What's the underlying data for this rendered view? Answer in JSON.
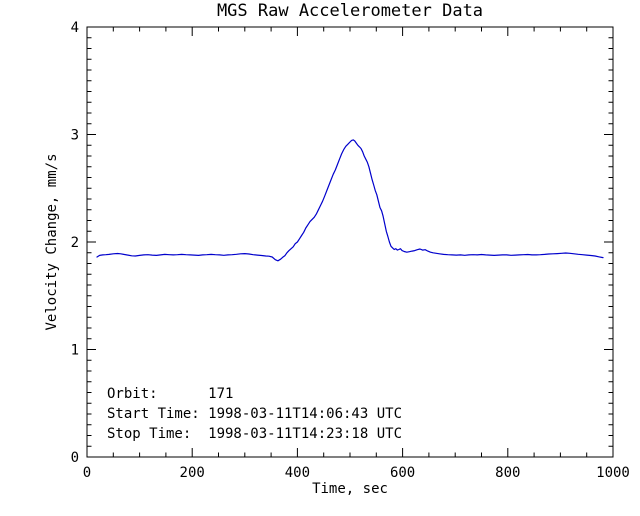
{
  "figure": {
    "background": "#ffffff"
  },
  "chart_data": {
    "type": "line",
    "title": "MGS Raw Accelerometer Data",
    "xlabel": "Time, sec",
    "ylabel": "Velocity Change, mm/s",
    "xlim": [
      0,
      1000
    ],
    "ylim": [
      0,
      4
    ],
    "x_major_ticks": [
      0,
      200,
      400,
      600,
      800,
      1000
    ],
    "x_minor_step": 50,
    "y_major_ticks": [
      0,
      1,
      2,
      3,
      4
    ],
    "y_minor_step": 0.1,
    "grid": false,
    "legend": "none",
    "axis_color": "#000000",
    "line_color": "#0000cc",
    "orbit": "171",
    "start_time": "1998-03-11T14:06:43 UTC",
    "stop_time": "1998-03-11T14:23:18 UTC",
    "annotations": [
      {
        "text": "Orbit:      171"
      },
      {
        "text": "Start Time: 1998-03-11T14:06:43 UTC"
      },
      {
        "text": "Stop Time:  1998-03-11T14:23:18 UTC"
      }
    ],
    "series": [
      {
        "name": "velocity-change",
        "color": "#0000cc",
        "points": [
          [
            19,
            1.86
          ],
          [
            24,
            1.875
          ],
          [
            30,
            1.88
          ],
          [
            36,
            1.882
          ],
          [
            42,
            1.885
          ],
          [
            50,
            1.89
          ],
          [
            58,
            1.893
          ],
          [
            64,
            1.89
          ],
          [
            70,
            1.885
          ],
          [
            78,
            1.878
          ],
          [
            85,
            1.872
          ],
          [
            92,
            1.87
          ],
          [
            100,
            1.875
          ],
          [
            108,
            1.88
          ],
          [
            116,
            1.882
          ],
          [
            124,
            1.878
          ],
          [
            132,
            1.875
          ],
          [
            140,
            1.88
          ],
          [
            148,
            1.885
          ],
          [
            156,
            1.882
          ],
          [
            164,
            1.88
          ],
          [
            172,
            1.882
          ],
          [
            180,
            1.885
          ],
          [
            188,
            1.882
          ],
          [
            196,
            1.88
          ],
          [
            204,
            1.878
          ],
          [
            212,
            1.875
          ],
          [
            220,
            1.88
          ],
          [
            228,
            1.882
          ],
          [
            236,
            1.885
          ],
          [
            244,
            1.882
          ],
          [
            252,
            1.88
          ],
          [
            260,
            1.876
          ],
          [
            268,
            1.88
          ],
          [
            276,
            1.882
          ],
          [
            284,
            1.886
          ],
          [
            292,
            1.89
          ],
          [
            300,
            1.892
          ],
          [
            308,
            1.888
          ],
          [
            316,
            1.882
          ],
          [
            324,
            1.878
          ],
          [
            332,
            1.874
          ],
          [
            340,
            1.87
          ],
          [
            346,
            1.868
          ],
          [
            352,
            1.86
          ],
          [
            358,
            1.835
          ],
          [
            363,
            1.825
          ],
          [
            368,
            1.84
          ],
          [
            372,
            1.858
          ],
          [
            376,
            1.872
          ],
          [
            380,
            1.9
          ],
          [
            384,
            1.92
          ],
          [
            388,
            1.938
          ],
          [
            392,
            1.955
          ],
          [
            396,
            1.985
          ],
          [
            400,
            2.0
          ],
          [
            404,
            2.03
          ],
          [
            408,
            2.06
          ],
          [
            412,
            2.09
          ],
          [
            416,
            2.13
          ],
          [
            420,
            2.16
          ],
          [
            424,
            2.19
          ],
          [
            428,
            2.21
          ],
          [
            432,
            2.23
          ],
          [
            436,
            2.26
          ],
          [
            440,
            2.3
          ],
          [
            444,
            2.34
          ],
          [
            448,
            2.38
          ],
          [
            452,
            2.43
          ],
          [
            456,
            2.48
          ],
          [
            460,
            2.53
          ],
          [
            464,
            2.58
          ],
          [
            468,
            2.63
          ],
          [
            472,
            2.67
          ],
          [
            476,
            2.72
          ],
          [
            480,
            2.77
          ],
          [
            484,
            2.82
          ],
          [
            488,
            2.86
          ],
          [
            492,
            2.89
          ],
          [
            496,
            2.91
          ],
          [
            500,
            2.93
          ],
          [
            503,
            2.945
          ],
          [
            506,
            2.95
          ],
          [
            509,
            2.94
          ],
          [
            512,
            2.92
          ],
          [
            515,
            2.9
          ],
          [
            518,
            2.885
          ],
          [
            521,
            2.87
          ],
          [
            524,
            2.84
          ],
          [
            527,
            2.8
          ],
          [
            530,
            2.77
          ],
          [
            533,
            2.74
          ],
          [
            536,
            2.7
          ],
          [
            539,
            2.64
          ],
          [
            542,
            2.58
          ],
          [
            545,
            2.53
          ],
          [
            548,
            2.48
          ],
          [
            551,
            2.44
          ],
          [
            554,
            2.38
          ],
          [
            557,
            2.32
          ],
          [
            560,
            2.29
          ],
          [
            563,
            2.24
          ],
          [
            566,
            2.17
          ],
          [
            569,
            2.1
          ],
          [
            572,
            2.05
          ],
          [
            575,
            2.0
          ],
          [
            578,
            1.96
          ],
          [
            581,
            1.945
          ],
          [
            584,
            1.93
          ],
          [
            587,
            1.938
          ],
          [
            590,
            1.925
          ],
          [
            593,
            1.93
          ],
          [
            596,
            1.938
          ],
          [
            599,
            1.92
          ],
          [
            603,
            1.912
          ],
          [
            608,
            1.905
          ],
          [
            613,
            1.91
          ],
          [
            618,
            1.915
          ],
          [
            623,
            1.92
          ],
          [
            628,
            1.928
          ],
          [
            633,
            1.935
          ],
          [
            638,
            1.925
          ],
          [
            643,
            1.928
          ],
          [
            648,
            1.915
          ],
          [
            653,
            1.905
          ],
          [
            658,
            1.9
          ],
          [
            664,
            1.895
          ],
          [
            670,
            1.89
          ],
          [
            678,
            1.885
          ],
          [
            686,
            1.882
          ],
          [
            694,
            1.88
          ],
          [
            702,
            1.878
          ],
          [
            710,
            1.88
          ],
          [
            718,
            1.876
          ],
          [
            726,
            1.88
          ],
          [
            734,
            1.882
          ],
          [
            742,
            1.88
          ],
          [
            750,
            1.884
          ],
          [
            758,
            1.88
          ],
          [
            766,
            1.878
          ],
          [
            774,
            1.875
          ],
          [
            782,
            1.878
          ],
          [
            790,
            1.88
          ],
          [
            798,
            1.88
          ],
          [
            806,
            1.876
          ],
          [
            814,
            1.878
          ],
          [
            822,
            1.88
          ],
          [
            830,
            1.882
          ],
          [
            838,
            1.884
          ],
          [
            846,
            1.88
          ],
          [
            854,
            1.88
          ],
          [
            862,
            1.882
          ],
          [
            870,
            1.885
          ],
          [
            878,
            1.888
          ],
          [
            886,
            1.89
          ],
          [
            894,
            1.892
          ],
          [
            902,
            1.895
          ],
          [
            910,
            1.898
          ],
          [
            918,
            1.895
          ],
          [
            926,
            1.89
          ],
          [
            934,
            1.886
          ],
          [
            942,
            1.882
          ],
          [
            950,
            1.878
          ],
          [
            958,
            1.874
          ],
          [
            966,
            1.87
          ],
          [
            973,
            1.862
          ],
          [
            981,
            1.855
          ]
        ]
      }
    ]
  }
}
